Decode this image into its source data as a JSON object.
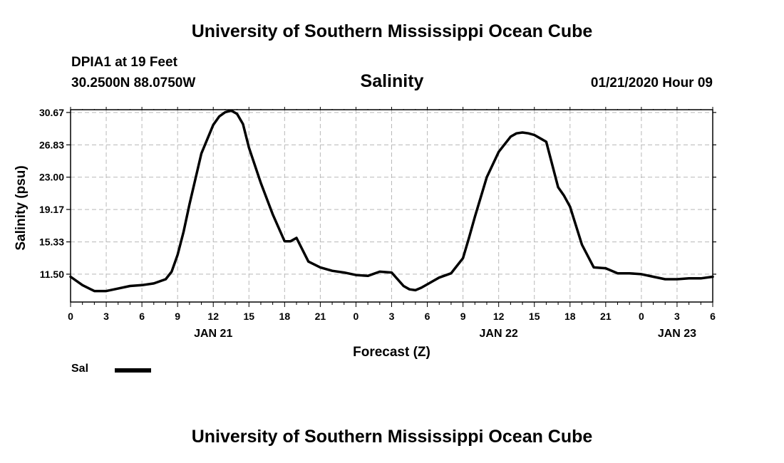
{
  "header": {
    "title": "University of Southern Mississippi Ocean Cube",
    "station": "DPIA1 at 19 Feet",
    "coords": "30.2500N 88.0750W",
    "chart_title": "Salinity",
    "timestamp": "01/21/2020 Hour 09"
  },
  "footer": {
    "title": "University of Southern Mississippi Ocean Cube"
  },
  "legend": {
    "label": "Sal",
    "color": "#000000"
  },
  "chart_data": {
    "type": "line",
    "title": "Salinity",
    "xlabel": "Forecast (Z)",
    "ylabel": "Salinity (psu)",
    "ylim": [
      8.2,
      31.0
    ],
    "xlim": [
      0,
      54
    ],
    "grid": true,
    "legend_position": "bottom-left",
    "y_ticks": [
      11.5,
      15.33,
      19.17,
      23.0,
      26.83,
      30.67
    ],
    "y_tick_labels": [
      "11.50",
      "15.33",
      "19.17",
      "23.00",
      "26.83",
      "30.67"
    ],
    "x_ticks": [
      0,
      3,
      6,
      9,
      12,
      15,
      18,
      21,
      24,
      27,
      30,
      33,
      36,
      39,
      42,
      45,
      48,
      51,
      54
    ],
    "x_tick_labels": [
      "0",
      "3",
      "6",
      "9",
      "12",
      "15",
      "18",
      "21",
      "0",
      "3",
      "6",
      "9",
      "12",
      "15",
      "18",
      "21",
      "0",
      "3",
      "6"
    ],
    "date_labels": [
      {
        "x": 12,
        "label": "JAN 21"
      },
      {
        "x": 36,
        "label": "JAN 22"
      },
      {
        "x": 51,
        "label": "JAN 23"
      }
    ],
    "series": [
      {
        "name": "Sal",
        "color": "#000000",
        "x": [
          0,
          1,
          2,
          3,
          4,
          5,
          6,
          7,
          8,
          8.5,
          9,
          9.5,
          10,
          11,
          12,
          12.5,
          13,
          13.5,
          14,
          14.5,
          15,
          16,
          17,
          18,
          18.5,
          19,
          20,
          21,
          22,
          23,
          24,
          25,
          26,
          27,
          27.5,
          28,
          28.5,
          29,
          29.5,
          30,
          30.5,
          31,
          32,
          33,
          33.5,
          34,
          35,
          36,
          37,
          37.5,
          38,
          38.5,
          39,
          40,
          41,
          41.5,
          42,
          43,
          44,
          45,
          46,
          47,
          48,
          49,
          50,
          51,
          52,
          53,
          54
        ],
        "values": [
          11.2,
          10.2,
          9.5,
          9.5,
          9.8,
          10.1,
          10.2,
          10.4,
          10.9,
          11.8,
          13.8,
          16.5,
          19.8,
          25.8,
          29.2,
          30.2,
          30.7,
          30.9,
          30.5,
          29.3,
          26.5,
          22.3,
          18.6,
          15.4,
          15.4,
          15.8,
          13.0,
          12.3,
          11.9,
          11.7,
          11.4,
          11.3,
          11.8,
          11.7,
          10.9,
          10.1,
          9.7,
          9.6,
          9.9,
          10.3,
          10.7,
          11.1,
          11.6,
          13.4,
          15.8,
          18.3,
          23.0,
          26.0,
          27.8,
          28.2,
          28.3,
          28.2,
          28.0,
          27.2,
          21.8,
          20.8,
          19.5,
          15.0,
          12.3,
          12.2,
          11.6,
          11.6,
          11.5,
          11.2,
          10.9,
          10.9,
          11.0,
          11.0,
          11.2
        ]
      }
    ]
  }
}
